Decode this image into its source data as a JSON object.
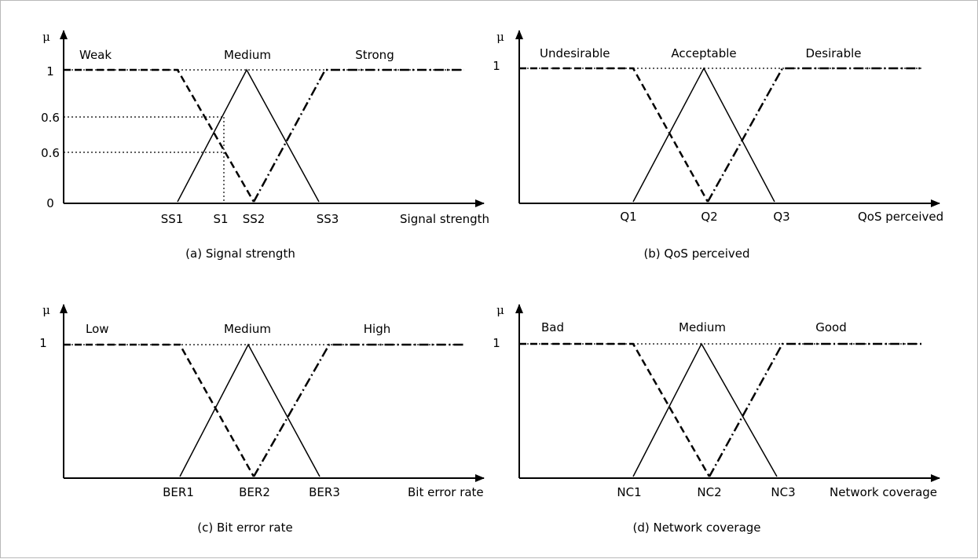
{
  "figure": {
    "panels": [
      {
        "id": "a",
        "caption": "(a) Signal strength",
        "y_axis_symbol": "μ",
        "x_axis_label": "Signal strength",
        "y_ticks": [
          "1",
          "0.6",
          "0.6",
          "0"
        ],
        "x_ticks": [
          "SS1",
          "S1",
          "SS2",
          "SS3"
        ],
        "sets": [
          "Weak",
          "Medium",
          "Strong"
        ]
      },
      {
        "id": "b",
        "caption": "(b) QoS perceived",
        "y_axis_symbol": "μ",
        "x_axis_label": "QoS perceived",
        "y_ticks": [
          "1"
        ],
        "x_ticks": [
          "Q1",
          "Q2",
          "Q3"
        ],
        "sets": [
          "Undesirable",
          "Acceptable",
          "Desirable"
        ]
      },
      {
        "id": "c",
        "caption": "(c) Bit error rate",
        "y_axis_symbol": "μ",
        "x_axis_label": "Bit error rate",
        "y_ticks": [
          "1"
        ],
        "x_ticks": [
          "BER1",
          "BER2",
          "BER3"
        ],
        "sets": [
          "Low",
          "Medium",
          "High"
        ]
      },
      {
        "id": "d",
        "caption": "(d) Network coverage",
        "y_axis_symbol": "μ",
        "x_axis_label": "Network coverage",
        "y_ticks": [
          "1"
        ],
        "x_ticks": [
          "NC1",
          "NC2",
          "NC3"
        ],
        "sets": [
          "Bad",
          "Medium",
          "Good"
        ]
      }
    ]
  }
}
